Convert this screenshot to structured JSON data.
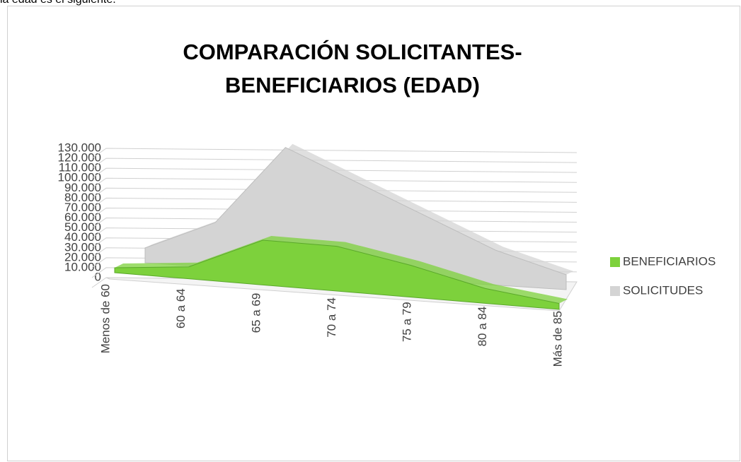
{
  "intro_text": "la edad es el siguiente:",
  "chart_data": {
    "type": "area3d",
    "title": "COMPARACIÓN SOLICITANTES-BENEFICIARIOS (EDAD)",
    "categories": [
      "Menos de 60",
      "60 a 64",
      "65 a 69",
      "70 a 74",
      "75 a 79",
      "80 a 84",
      "Más de 85"
    ],
    "series": [
      {
        "name": "BENEFICIARIOS",
        "color": "#7dd13c",
        "values": [
          5000,
          12000,
          45000,
          45000,
          32000,
          15000,
          6000
        ]
      },
      {
        "name": "SOLICITUDES",
        "color": "#d4d4d4",
        "values": [
          15000,
          45000,
          125000,
          95000,
          65000,
          35000,
          15000
        ]
      }
    ],
    "ylim": [
      0,
      130000
    ],
    "yticks": [
      0,
      {
        "value": 10000,
        "label": "10.000"
      },
      {
        "value": 20000,
        "label": "20.000"
      },
      {
        "value": 30000,
        "label": "30.000"
      },
      {
        "value": 40000,
        "label": "40.000"
      },
      {
        "value": 50000,
        "label": "50.000"
      },
      {
        "value": 60000,
        "label": "60.000"
      },
      {
        "value": 70000,
        "label": "70.000"
      },
      {
        "value": 80000,
        "label": "80.000"
      },
      {
        "value": 90000,
        "label": "90.000"
      },
      {
        "value": 100000,
        "label": "100.000"
      },
      {
        "value": 110000,
        "label": "110.000"
      },
      {
        "value": 120000,
        "label": "120.000"
      },
      {
        "value": 130000,
        "label": "130.000"
      }
    ],
    "grid": true,
    "legend": "right"
  }
}
